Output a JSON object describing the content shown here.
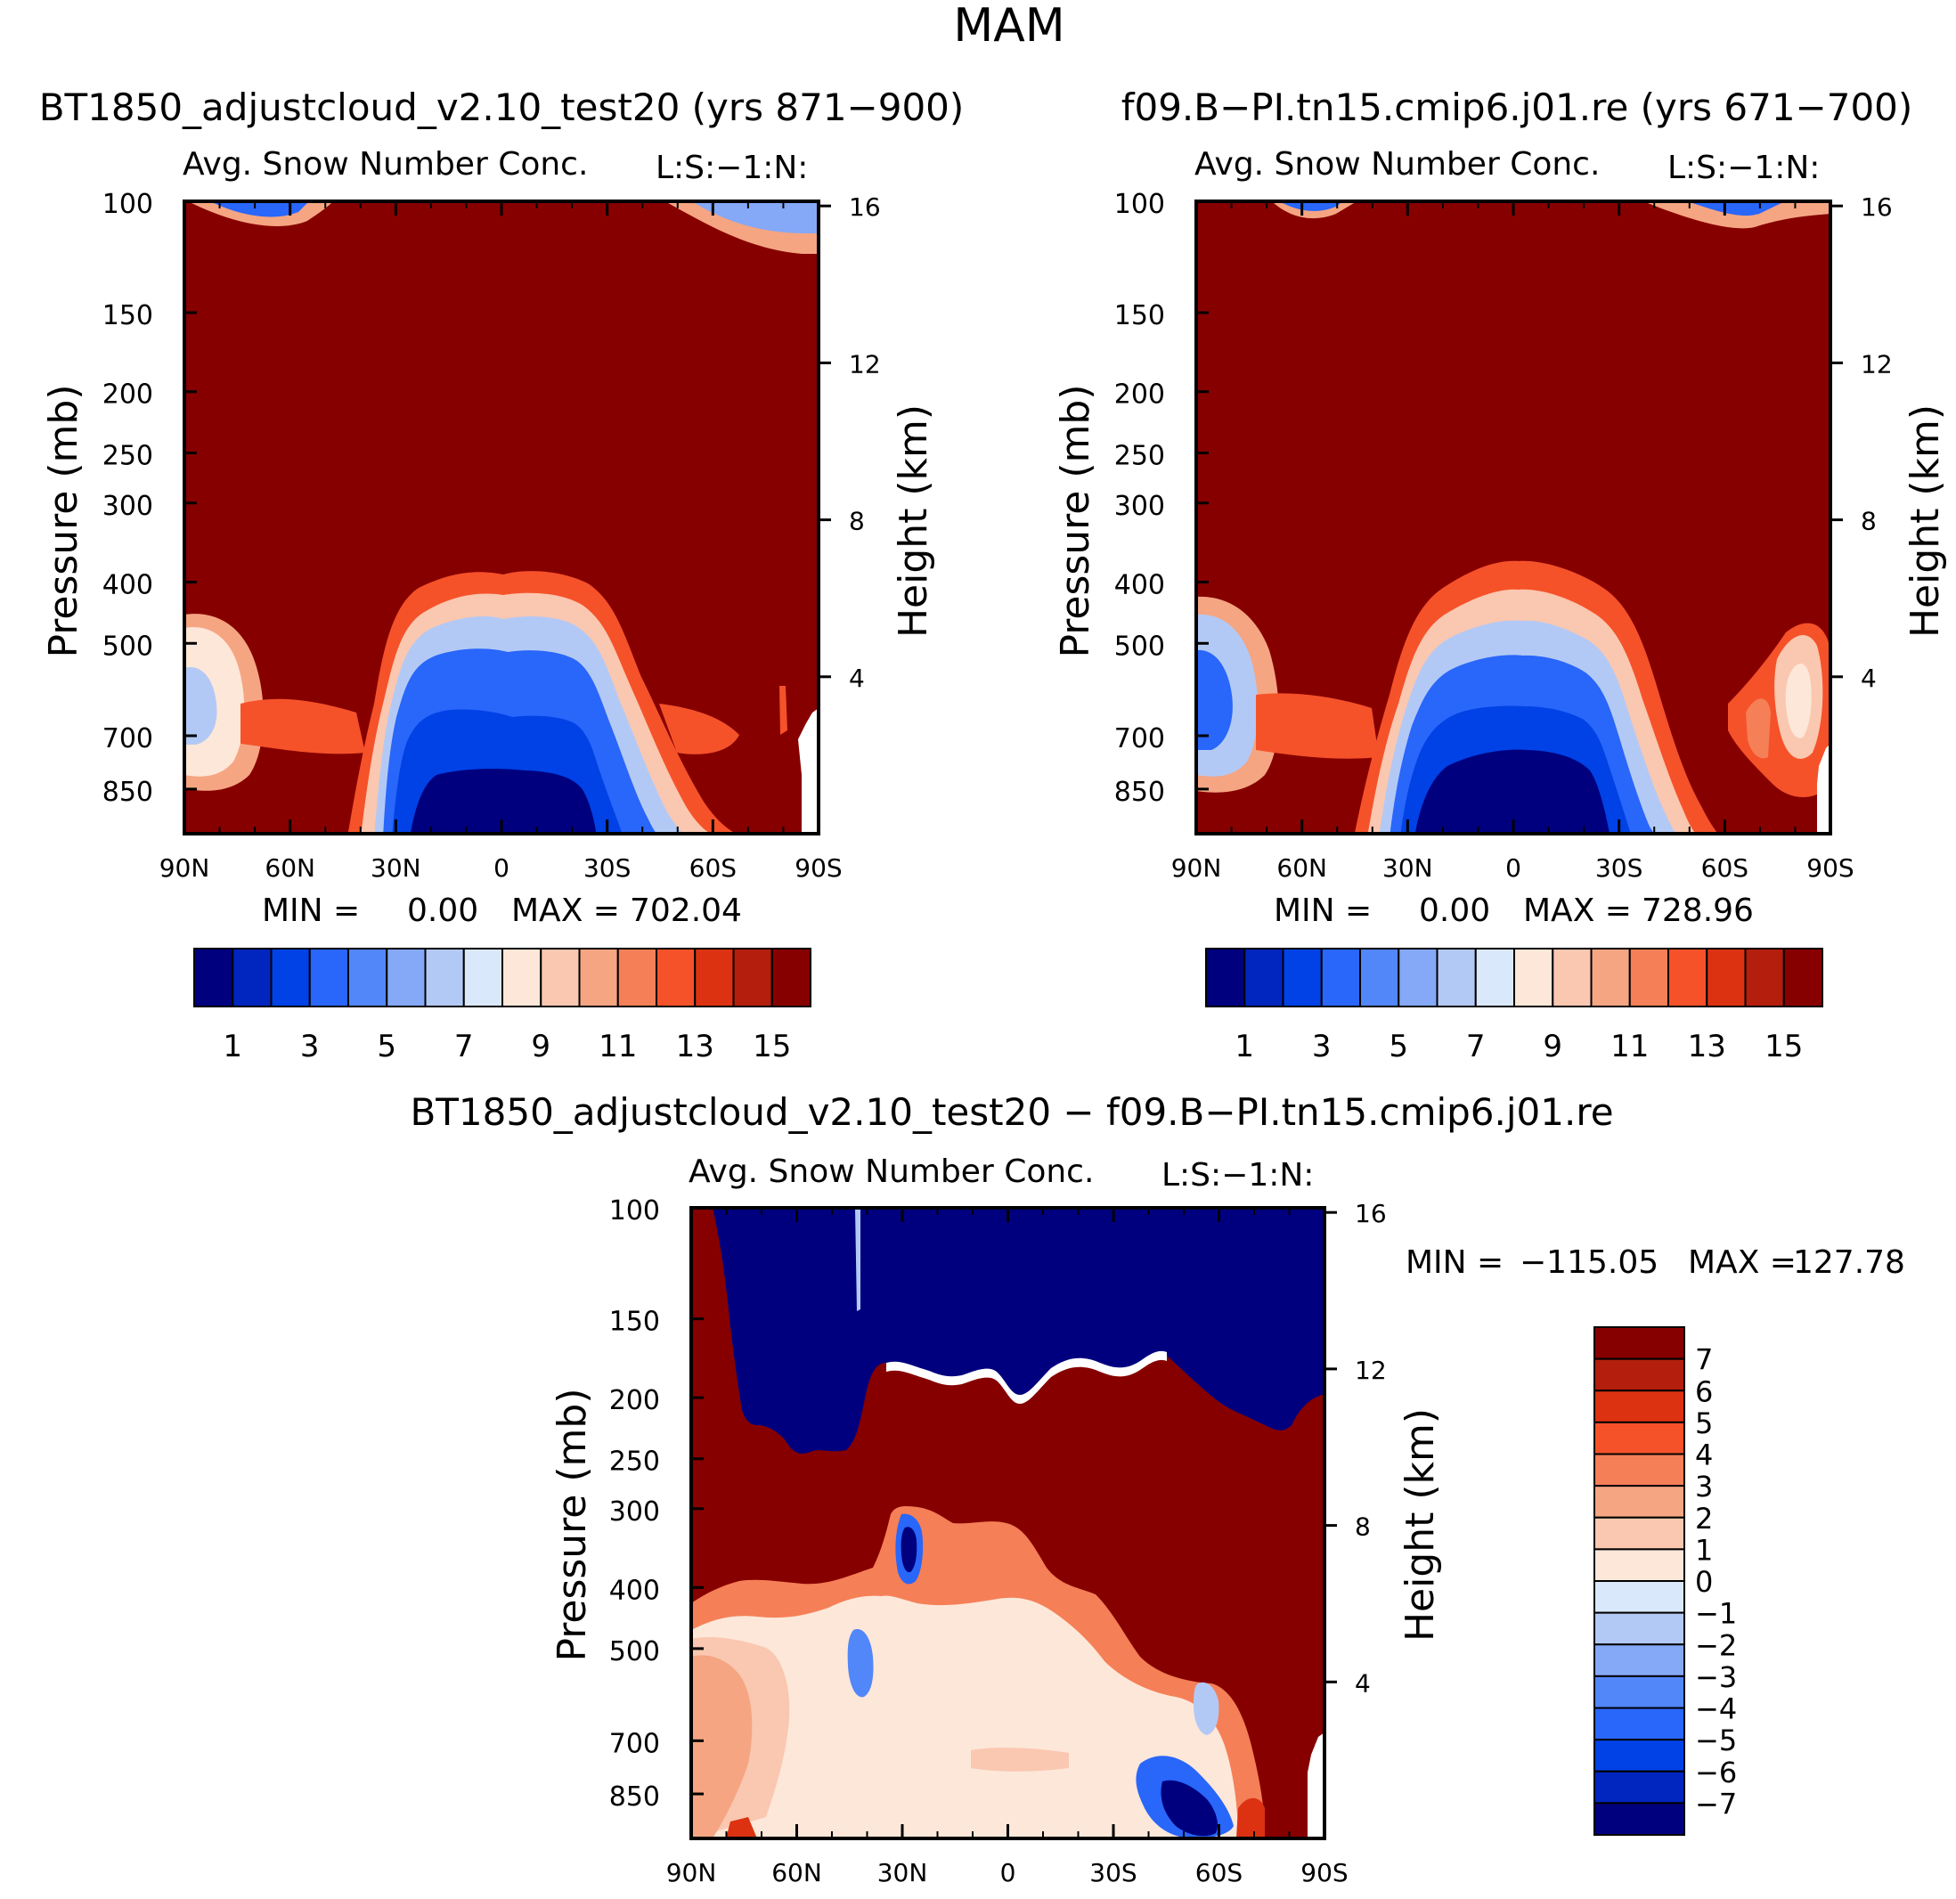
{
  "page_title": "MAM",
  "colors": {
    "sequential": [
      "#00007f",
      "#0026bf",
      "#0042e6",
      "#2966fa",
      "#5287fa",
      "#85a8f7",
      "#b3c9f5",
      "#d9e8fa",
      "#fde7d9",
      "#fac7b0",
      "#f5a582",
      "#f57f57",
      "#f5522a",
      "#dc3211",
      "#b31e0d",
      "#870000"
    ],
    "diff": [
      "#00007f",
      "#0026bf",
      "#0042e6",
      "#2966fa",
      "#5287fa",
      "#85a8f7",
      "#b3c9f5",
      "#d9e8fa",
      "#fde7d9",
      "#fac7b0",
      "#f5a582",
      "#f57f57",
      "#f5522a",
      "#dc3211",
      "#b31e0d",
      "#870000"
    ],
    "frame": "#000000"
  },
  "chart_data": [
    {
      "id": "left",
      "type": "heatmap",
      "title": "BT1850_adjustcloud_v2.10_test20 (yrs 871-900)",
      "subtitle": "Avg. Snow Number Conc.",
      "corner_label": "L:S:-1:N:",
      "xlabel": "",
      "ylabel": "Pressure (mb)",
      "y2label": "Height (km)",
      "xticks": [
        "90N",
        "60N",
        "30N",
        "0",
        "30S",
        "60S",
        "90S"
      ],
      "yticks": [
        100,
        150,
        200,
        250,
        300,
        400,
        500,
        700,
        850
      ],
      "y2ticks": [
        16,
        12,
        8,
        4
      ],
      "ylim": [
        100,
        1000
      ],
      "stats": {
        "min_label": "MIN =",
        "min_value": "0.00",
        "max_label": "MAX =",
        "max_value": "702.04"
      },
      "colorbar_labels": [
        "1",
        "3",
        "5",
        "7",
        "9",
        "11",
        "13",
        "15"
      ],
      "features": {
        "ascent_center_lat": 0,
        "dome_top_mb": 395,
        "left_blob_lat": 80,
        "left_blob_mb": 580
      }
    },
    {
      "id": "right",
      "type": "heatmap",
      "title": "f09.B-PI.tn15.cmip6.j01.re (yrs 671-700)",
      "subtitle": "Avg. Snow Number Conc.",
      "corner_label": "L:S:-1:N:",
      "xlabel": "",
      "ylabel": "Pressure (mb)",
      "y2label": "Height (km)",
      "xticks": [
        "90N",
        "60N",
        "30N",
        "0",
        "30S",
        "60S",
        "90S"
      ],
      "yticks": [
        100,
        150,
        200,
        250,
        300,
        400,
        500,
        700,
        850
      ],
      "y2ticks": [
        16,
        12,
        8,
        4
      ],
      "ylim": [
        100,
        1000
      ],
      "stats": {
        "min_label": "MIN =",
        "min_value": "0.00",
        "max_label": "MAX =",
        "max_value": "728.96"
      },
      "colorbar_labels": [
        "1",
        "3",
        "5",
        "7",
        "9",
        "11",
        "13",
        "15"
      ],
      "features": {
        "ascent_center_lat": 0,
        "dome_top_mb": 380,
        "left_blob_lat": 80,
        "left_blob_mb": 580,
        "right_blob_lat": -70,
        "right_blob_mb": 560
      }
    },
    {
      "id": "diff",
      "type": "heatmap",
      "title": "BT1850_adjustcloud_v2.10_test20 - f09.B-PI.tn15.cmip6.j01.re",
      "subtitle": "Avg. Snow Number Conc.",
      "corner_label": "L:S:-1:N:",
      "xlabel": "",
      "ylabel": "Pressure (mb)",
      "y2label": "Height (km)",
      "xticks": [
        "90N",
        "60N",
        "30N",
        "0",
        "30S",
        "60S",
        "90S"
      ],
      "yticks": [
        100,
        150,
        200,
        250,
        300,
        400,
        500,
        700,
        850
      ],
      "y2ticks": [
        16,
        12,
        8,
        4
      ],
      "ylim": [
        100,
        1000
      ],
      "stats": {
        "min_label": "MIN =",
        "min_value": "-115.05",
        "max_label": "MAX =",
        "max_value": "127.78"
      },
      "colorbar_labels": [
        "7",
        "6",
        "5",
        "4",
        "3",
        "2",
        "1",
        "0",
        "-1",
        "-2",
        "-3",
        "-4",
        "-5",
        "-6",
        "-7"
      ],
      "features": {
        "upper_boundary_mb": 220,
        "mid_boundary_mb": 420
      }
    }
  ]
}
